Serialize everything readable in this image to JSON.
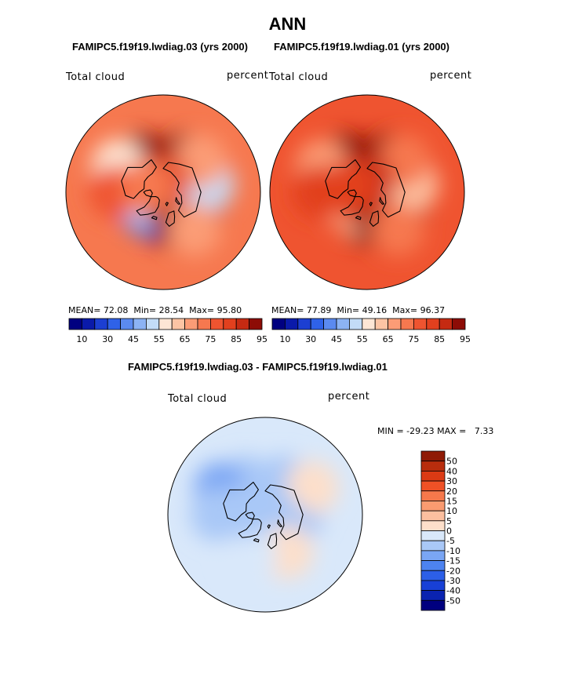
{
  "page_title": "ANN",
  "color_scales": {
    "abs": [
      "#000080",
      "#0a1aaa",
      "#1c3fd2",
      "#2f62e8",
      "#5b8af0",
      "#8cb3f4",
      "#c3dcf7",
      "#fde6d5",
      "#fcc4a4",
      "#fb9c76",
      "#f6784f",
      "#ef5430",
      "#e2401e",
      "#c52a12",
      "#8d0c06"
    ],
    "diff": [
      "#00007f",
      "#0a23b0",
      "#1840d6",
      "#2c5fe8",
      "#4d83f0",
      "#7aa6f4",
      "#a9c8f7",
      "#d9e8fa",
      "#fddfca",
      "#fcbf9f",
      "#fa9b70",
      "#f6784b",
      "#ef5126",
      "#db3a14",
      "#b82d0d",
      "#8f1a05"
    ]
  },
  "chart_data": [
    {
      "type": "heatmap",
      "projection": "north-polar-stereographic",
      "title": "FAMIPC5.f19f19.lwdiag.03 (yrs 2000)",
      "variable": "Total cloud",
      "units": "percent",
      "stats": {
        "mean": "72.08",
        "min": "28.54",
        "max": "95.80"
      },
      "levels": [
        10,
        20,
        30,
        40,
        45,
        50,
        55,
        60,
        65,
        70,
        75,
        80,
        85,
        90,
        95
      ],
      "colorbar_tick_labels": [
        "10",
        "30",
        "45",
        "55",
        "65",
        "75",
        "85",
        "95"
      ],
      "patches": [
        {
          "lon": 0,
          "lat": 65,
          "value": 95
        },
        {
          "lon": -40,
          "lat": 72,
          "value": 40
        },
        {
          "lon": -45,
          "lat": 68,
          "value": 30
        },
        {
          "lon": -60,
          "lat": 75,
          "value": 50
        },
        {
          "lon": 30,
          "lat": 75,
          "value": 95
        },
        {
          "lon": 60,
          "lat": 55,
          "value": 90
        },
        {
          "lon": 90,
          "lat": 55,
          "value": 85
        },
        {
          "lon": 150,
          "lat": 55,
          "value": 90
        },
        {
          "lon": -150,
          "lat": 55,
          "value": 90
        },
        {
          "lon": -120,
          "lat": 42,
          "value": 55
        },
        {
          "lon": -90,
          "lat": 45,
          "value": 75
        },
        {
          "lon": 100,
          "lat": 48,
          "value": 50
        },
        {
          "lon": 130,
          "lat": 45,
          "value": 65
        },
        {
          "lon": 180,
          "lat": 80,
          "value": 80
        },
        {
          "lon": -110,
          "lat": 75,
          "value": 70
        },
        {
          "lon": 40,
          "lat": 45,
          "value": 65
        }
      ]
    },
    {
      "type": "heatmap",
      "projection": "north-polar-stereographic",
      "title": "FAMIPC5.f19f19.lwdiag.01 (yrs 2000)",
      "variable": "Total cloud",
      "units": "percent",
      "stats": {
        "mean": "77.89",
        "min": "49.16",
        "max": "96.37"
      },
      "levels": [
        10,
        20,
        30,
        40,
        45,
        50,
        55,
        60,
        65,
        70,
        75,
        80,
        85,
        90,
        95
      ],
      "colorbar_tick_labels": [
        "10",
        "30",
        "45",
        "55",
        "65",
        "75",
        "85",
        "95"
      ],
      "patches": [
        {
          "lon": 0,
          "lat": 65,
          "value": 95
        },
        {
          "lon": -40,
          "lat": 72,
          "value": 60
        },
        {
          "lon": -60,
          "lat": 75,
          "value": 70
        },
        {
          "lon": 30,
          "lat": 75,
          "value": 95
        },
        {
          "lon": 60,
          "lat": 55,
          "value": 90
        },
        {
          "lon": 90,
          "lat": 55,
          "value": 85
        },
        {
          "lon": 150,
          "lat": 55,
          "value": 90
        },
        {
          "lon": -150,
          "lat": 55,
          "value": 90
        },
        {
          "lon": -120,
          "lat": 42,
          "value": 65
        },
        {
          "lon": -90,
          "lat": 45,
          "value": 80
        },
        {
          "lon": 100,
          "lat": 48,
          "value": 60
        },
        {
          "lon": 130,
          "lat": 45,
          "value": 70
        },
        {
          "lon": 180,
          "lat": 80,
          "value": 85
        },
        {
          "lon": -110,
          "lat": 75,
          "value": 80
        },
        {
          "lon": 40,
          "lat": 45,
          "value": 70
        }
      ]
    },
    {
      "type": "heatmap",
      "projection": "north-polar-stereographic",
      "title": "FAMIPC5.f19f19.lwdiag.03 - FAMIPC5.f19f19.lwdiag.01",
      "variable": "Total cloud",
      "units": "percent",
      "stats": {
        "min": "-29.23",
        "max": "7.33"
      },
      "stats_text": "MIN = -29.23 MAX =   7.33",
      "levels": [
        -50,
        -40,
        -30,
        -20,
        -15,
        -10,
        -5,
        0,
        5,
        10,
        15,
        20,
        30,
        40,
        50
      ],
      "colorbar_tick_labels": [
        "50",
        "40",
        "30",
        "20",
        "15",
        "10",
        "5",
        "0",
        "-5",
        "-10",
        "-15",
        "-20",
        "-30",
        "-40",
        "-50"
      ],
      "patches": [
        {
          "lon": -40,
          "lat": 72,
          "value": -25
        },
        {
          "lon": -60,
          "lat": 75,
          "value": -12
        },
        {
          "lon": 90,
          "lat": 60,
          "value": -8
        },
        {
          "lon": 150,
          "lat": 55,
          "value": -10
        },
        {
          "lon": -150,
          "lat": 55,
          "value": -10
        },
        {
          "lon": -120,
          "lat": 42,
          "value": -12
        },
        {
          "lon": 0,
          "lat": 60,
          "value": 3
        },
        {
          "lon": 120,
          "lat": 40,
          "value": 3
        },
        {
          "lon": 60,
          "lat": 70,
          "value": -8
        },
        {
          "lon": 180,
          "lat": 80,
          "value": -6
        },
        {
          "lon": -90,
          "lat": 45,
          "value": -7
        },
        {
          "lon": 30,
          "lat": 50,
          "value": 2
        },
        {
          "lon": -20,
          "lat": 50,
          "value": -4
        },
        {
          "lon": -100,
          "lat": 70,
          "value": -10
        }
      ]
    }
  ]
}
